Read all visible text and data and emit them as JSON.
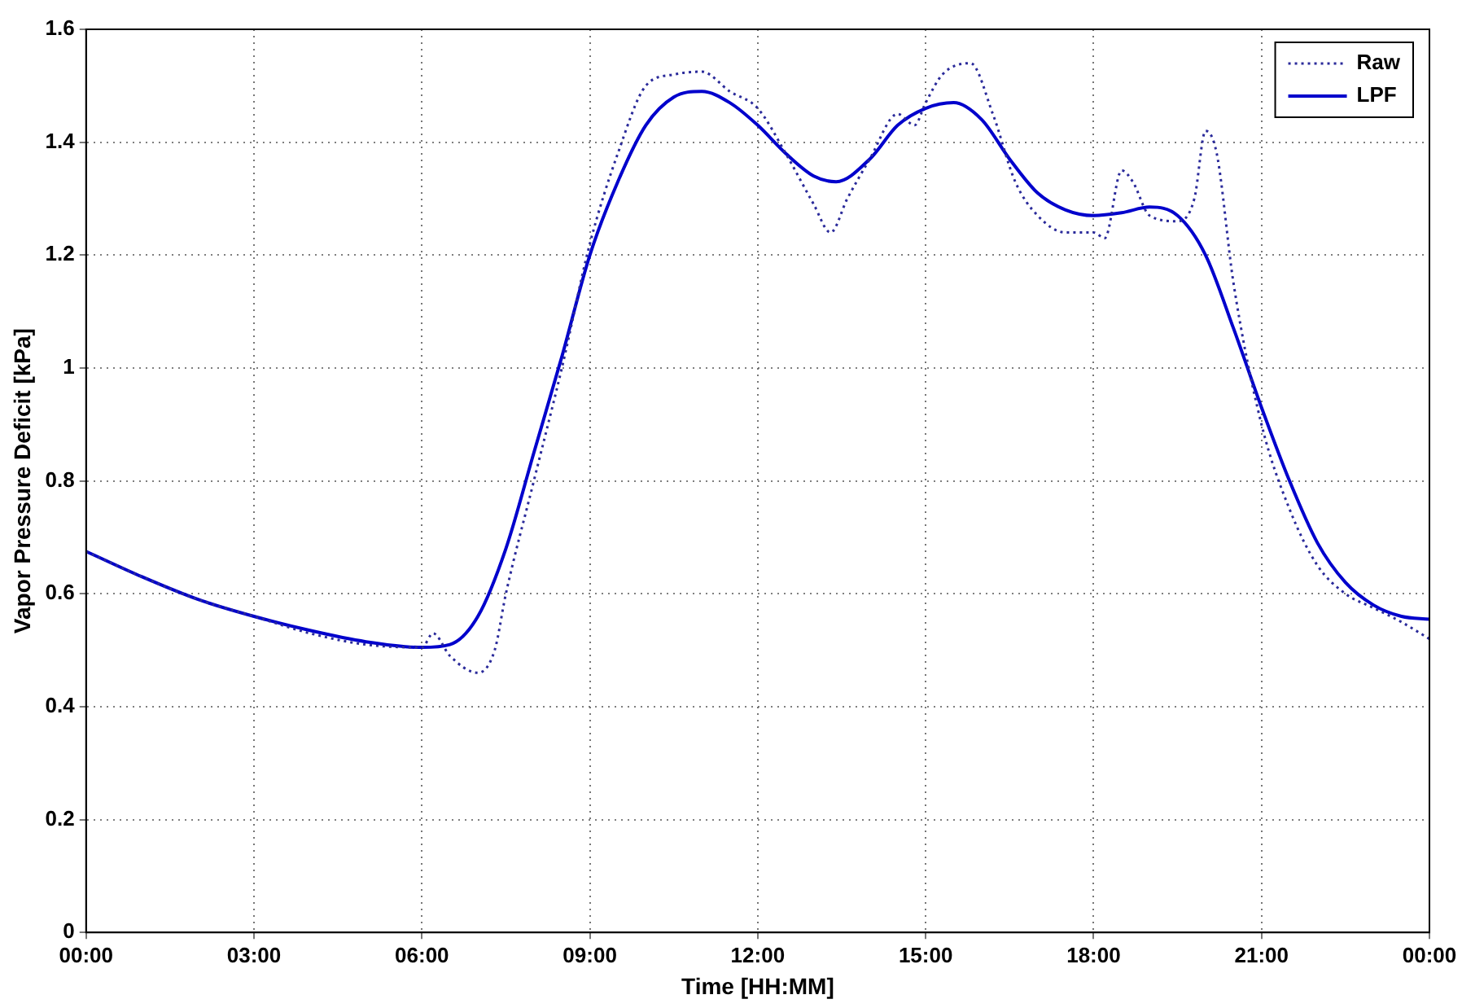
{
  "chart_data": {
    "type": "line",
    "xlabel": "Time [HH:MM]",
    "ylabel": "Vapor Pressure Deficit [kPa]",
    "xlim": [
      0,
      24
    ],
    "xticks": [
      {
        "value": 0,
        "label": "00:00"
      },
      {
        "value": 3,
        "label": "03:00"
      },
      {
        "value": 6,
        "label": "06:00"
      },
      {
        "value": 9,
        "label": "09:00"
      },
      {
        "value": 12,
        "label": "12:00"
      },
      {
        "value": 15,
        "label": "15:00"
      },
      {
        "value": 18,
        "label": "18:00"
      },
      {
        "value": 21,
        "label": "21:00"
      },
      {
        "value": 24,
        "label": "00:00"
      }
    ],
    "ylim": [
      0,
      1.6
    ],
    "yticks": [
      0,
      0.2,
      0.4,
      0.6,
      0.8,
      1,
      1.2,
      1.4,
      1.6
    ],
    "grid": true,
    "legend": "top right",
    "marker": "none",
    "series": [
      {
        "name": "Raw",
        "color": "#2a2a9a",
        "line_style": "dotted",
        "x": [
          0,
          1,
          2,
          3,
          4,
          5,
          6,
          6.2,
          6.5,
          7,
          7.3,
          7.5,
          8,
          8.5,
          9,
          9.5,
          10,
          10.5,
          11,
          11.5,
          12,
          12.5,
          13,
          13.3,
          13.6,
          14,
          14.5,
          14.8,
          15,
          15.3,
          15.8,
          16.2,
          16.6,
          17,
          17.5,
          18,
          18.2,
          18.5,
          18.7,
          19,
          19.5,
          19.8,
          20,
          20.2,
          20.5,
          21,
          21.5,
          22,
          22.5,
          23,
          23.5,
          24
        ],
        "values": [
          0.675,
          0.63,
          0.59,
          0.56,
          0.53,
          0.51,
          0.505,
          0.53,
          0.49,
          0.46,
          0.5,
          0.6,
          0.8,
          1.0,
          1.22,
          1.38,
          1.5,
          1.52,
          1.525,
          1.49,
          1.46,
          1.38,
          1.29,
          1.24,
          1.3,
          1.37,
          1.45,
          1.43,
          1.47,
          1.52,
          1.54,
          1.45,
          1.33,
          1.27,
          1.24,
          1.24,
          1.23,
          1.35,
          1.33,
          1.27,
          1.26,
          1.3,
          1.42,
          1.38,
          1.15,
          0.9,
          0.75,
          0.65,
          0.6,
          0.575,
          0.55,
          0.52
        ]
      },
      {
        "name": "LPF",
        "color": "#0000cc",
        "line_style": "solid",
        "x": [
          0,
          1,
          2,
          3,
          4,
          5,
          6,
          6.5,
          7,
          7.5,
          8,
          8.5,
          9,
          9.5,
          10,
          10.5,
          11,
          11.5,
          12,
          12.5,
          13,
          13.4,
          14,
          14.5,
          15,
          15.5,
          16,
          16.5,
          17,
          17.5,
          18,
          18.5,
          19,
          19.5,
          20,
          20.5,
          21,
          21.5,
          22,
          22.5,
          23,
          23.5,
          24
        ],
        "values": [
          0.675,
          0.63,
          0.59,
          0.56,
          0.535,
          0.515,
          0.505,
          0.51,
          0.56,
          0.68,
          0.85,
          1.02,
          1.2,
          1.33,
          1.43,
          1.48,
          1.49,
          1.47,
          1.43,
          1.38,
          1.34,
          1.33,
          1.37,
          1.43,
          1.46,
          1.47,
          1.44,
          1.37,
          1.31,
          1.28,
          1.27,
          1.275,
          1.285,
          1.27,
          1.2,
          1.07,
          0.93,
          0.8,
          0.69,
          0.62,
          0.58,
          0.56,
          0.555
        ]
      }
    ]
  }
}
